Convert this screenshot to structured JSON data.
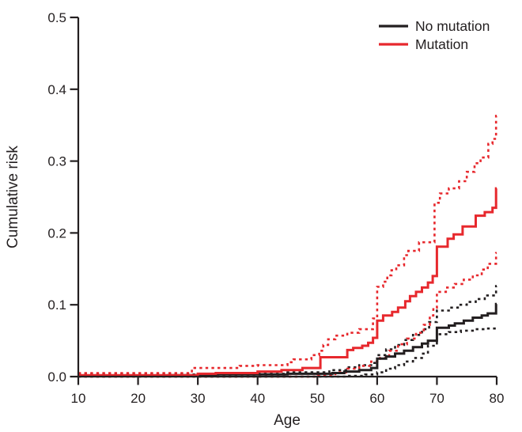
{
  "figure": {
    "background": "#ffffff",
    "axis_color": "#231f20",
    "text_color": "#231f20",
    "black_series_color": "#231f20",
    "red_series_color": "#e7282d"
  },
  "legend": {
    "position": "top-right",
    "items": [
      {
        "label": "No mutation",
        "color": "#231f20",
        "line_style": "solid"
      },
      {
        "label": "Mutation",
        "color": "#e7282d",
        "line_style": "solid"
      }
    ]
  },
  "chart_data": {
    "type": "line",
    "subtype": "step-function-cumulative-incidence-with-confidence-bands",
    "title": "",
    "xlabel": "Age",
    "ylabel": "Cumulative risk",
    "xlim": [
      10,
      80
    ],
    "ylim": [
      0,
      0.5
    ],
    "xticks": [
      10,
      20,
      30,
      40,
      50,
      60,
      70,
      80
    ],
    "yticks": [
      "0.0",
      "0.1",
      "0.2",
      "0.3",
      "0.4",
      "0.5"
    ],
    "grid": false,
    "legend_position": "top-right",
    "series": [
      {
        "name": "No mutation (estimate)",
        "group": "No mutation",
        "color": "#231f20",
        "dash": false,
        "points": [
          [
            10,
            0.001
          ],
          [
            25,
            0.002
          ],
          [
            33,
            0.003
          ],
          [
            45,
            0.004
          ],
          [
            52.5,
            0.005
          ],
          [
            54.5,
            0.007
          ],
          [
            57,
            0.009
          ],
          [
            59,
            0.012
          ],
          [
            60,
            0.025
          ],
          [
            61.5,
            0.028
          ],
          [
            63,
            0.032
          ],
          [
            64.5,
            0.036
          ],
          [
            66,
            0.041
          ],
          [
            67.5,
            0.046
          ],
          [
            68.5,
            0.05
          ],
          [
            70,
            0.068
          ],
          [
            72,
            0.071
          ],
          [
            73,
            0.074
          ],
          [
            74.5,
            0.078
          ],
          [
            76,
            0.082
          ],
          [
            77.5,
            0.085
          ],
          [
            78.5,
            0.088
          ],
          [
            79.9,
            0.101
          ],
          [
            80,
            0.101
          ]
        ]
      },
      {
        "name": "No mutation (upper 95% CI)",
        "group": "No mutation",
        "color": "#231f20",
        "dash": true,
        "points": [
          [
            10,
            0.003
          ],
          [
            30,
            0.004
          ],
          [
            45,
            0.006
          ],
          [
            52,
            0.009
          ],
          [
            55,
            0.013
          ],
          [
            57,
            0.016
          ],
          [
            59,
            0.019
          ],
          [
            60,
            0.03
          ],
          [
            61.5,
            0.038
          ],
          [
            63,
            0.044
          ],
          [
            64.5,
            0.051
          ],
          [
            66,
            0.058
          ],
          [
            67.5,
            0.066
          ],
          [
            68.7,
            0.076
          ],
          [
            70,
            0.092
          ],
          [
            72,
            0.096
          ],
          [
            73.5,
            0.1
          ],
          [
            75,
            0.104
          ],
          [
            76.5,
            0.108
          ],
          [
            78,
            0.113
          ],
          [
            79.9,
            0.126
          ],
          [
            80,
            0.126
          ]
        ]
      },
      {
        "name": "No mutation (lower 95% CI)",
        "group": "No mutation",
        "color": "#231f20",
        "dash": true,
        "points": [
          [
            10,
            0.0
          ],
          [
            55,
            0.001
          ],
          [
            58,
            0.003
          ],
          [
            60,
            0.006
          ],
          [
            61.5,
            0.011
          ],
          [
            63,
            0.016
          ],
          [
            64.5,
            0.021
          ],
          [
            66,
            0.026
          ],
          [
            67.5,
            0.032
          ],
          [
            68.5,
            0.043
          ],
          [
            70,
            0.059
          ],
          [
            72,
            0.062
          ],
          [
            74,
            0.064
          ],
          [
            76,
            0.066
          ],
          [
            78,
            0.067
          ],
          [
            79.9,
            0.07
          ],
          [
            80,
            0.07
          ]
        ]
      },
      {
        "name": "Mutation (estimate)",
        "group": "Mutation",
        "color": "#e7282d",
        "dash": false,
        "points": [
          [
            10,
            0.002
          ],
          [
            30,
            0.004
          ],
          [
            33,
            0.005
          ],
          [
            40,
            0.007
          ],
          [
            44,
            0.009
          ],
          [
            47.5,
            0.012
          ],
          [
            50.5,
            0.027
          ],
          [
            55,
            0.037
          ],
          [
            56,
            0.04
          ],
          [
            57.5,
            0.043
          ],
          [
            58.5,
            0.047
          ],
          [
            59.3,
            0.054
          ],
          [
            60,
            0.078
          ],
          [
            61,
            0.085
          ],
          [
            62.5,
            0.09
          ],
          [
            63.5,
            0.096
          ],
          [
            64.7,
            0.105
          ],
          [
            65.5,
            0.112
          ],
          [
            66.5,
            0.118
          ],
          [
            67.5,
            0.124
          ],
          [
            68.5,
            0.131
          ],
          [
            69.3,
            0.14
          ],
          [
            70,
            0.181
          ],
          [
            71.8,
            0.192
          ],
          [
            72.8,
            0.198
          ],
          [
            74.3,
            0.209
          ],
          [
            76.5,
            0.224
          ],
          [
            78,
            0.229
          ],
          [
            79.3,
            0.235
          ],
          [
            79.9,
            0.262
          ],
          [
            80,
            0.262
          ]
        ]
      },
      {
        "name": "Mutation (upper 95% CI)",
        "group": "Mutation",
        "color": "#e7282d",
        "dash": true,
        "points": [
          [
            10,
            0.005
          ],
          [
            29,
            0.012
          ],
          [
            37,
            0.015
          ],
          [
            40,
            0.016
          ],
          [
            45,
            0.02
          ],
          [
            46,
            0.024
          ],
          [
            49,
            0.03
          ],
          [
            50.3,
            0.036
          ],
          [
            51,
            0.044
          ],
          [
            51.8,
            0.052
          ],
          [
            53,
            0.057
          ],
          [
            55,
            0.061
          ],
          [
            57,
            0.066
          ],
          [
            59.3,
            0.081
          ],
          [
            60,
            0.125
          ],
          [
            61,
            0.132
          ],
          [
            61.7,
            0.141
          ],
          [
            62.4,
            0.148
          ],
          [
            63.2,
            0.155
          ],
          [
            64.5,
            0.169
          ],
          [
            65.2,
            0.175
          ],
          [
            67,
            0.187
          ],
          [
            69.6,
            0.242
          ],
          [
            70.5,
            0.255
          ],
          [
            72,
            0.262
          ],
          [
            73.7,
            0.272
          ],
          [
            75,
            0.285
          ],
          [
            76.3,
            0.297
          ],
          [
            77.3,
            0.305
          ],
          [
            78.6,
            0.324
          ],
          [
            79.3,
            0.331
          ],
          [
            79.9,
            0.363
          ],
          [
            80,
            0.363
          ]
        ]
      },
      {
        "name": "Mutation (lower 95% CI)",
        "group": "Mutation",
        "color": "#e7282d",
        "dash": true,
        "points": [
          [
            10,
            0.0
          ],
          [
            50,
            0.002
          ],
          [
            53,
            0.006
          ],
          [
            55,
            0.011
          ],
          [
            57,
            0.015
          ],
          [
            59,
            0.021
          ],
          [
            60.5,
            0.026
          ],
          [
            62,
            0.036
          ],
          [
            63.5,
            0.045
          ],
          [
            65,
            0.053
          ],
          [
            66.5,
            0.061
          ],
          [
            67.8,
            0.072
          ],
          [
            68.8,
            0.085
          ],
          [
            69.4,
            0.096
          ],
          [
            70,
            0.118
          ],
          [
            71.5,
            0.124
          ],
          [
            73,
            0.129
          ],
          [
            74.5,
            0.135
          ],
          [
            76,
            0.141
          ],
          [
            77.5,
            0.149
          ],
          [
            78.5,
            0.157
          ],
          [
            79.9,
            0.172
          ],
          [
            80,
            0.172
          ]
        ]
      }
    ]
  }
}
